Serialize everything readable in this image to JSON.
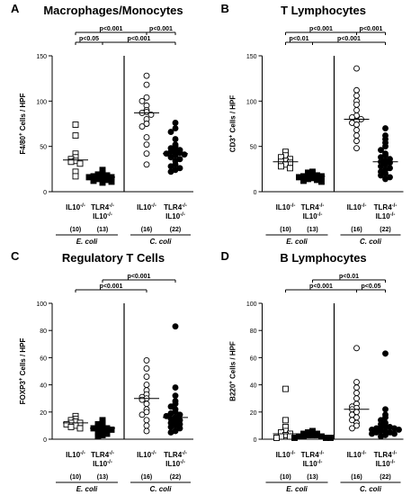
{
  "chart_data": [
    {
      "type": "scatter",
      "panel_letter": "A",
      "title": "Macrophages/Monocytes",
      "ylabel_main": "F4/80",
      "ylabel_sup": "+",
      "ylabel_rest": " Cells / HPF",
      "ylim": [
        0,
        150
      ],
      "yticks": [
        "0",
        "50",
        "100",
        "150"
      ],
      "groups": [
        {
          "label1": "IL10",
          "label1_sup": "-/-",
          "label2": "",
          "label2_sup": "",
          "n": "(10)",
          "marker": "open-square",
          "median": 35,
          "values": [
            74,
            62,
            42,
            38,
            36,
            34,
            33,
            31,
            22,
            17
          ]
        },
        {
          "label1": "TLR4",
          "label1_sup": "-/-",
          "label2": "IL10",
          "label2_sup": "-/-",
          "n": "(13)",
          "marker": "filled-square",
          "median": 16,
          "values": [
            24,
            20,
            19,
            18,
            17,
            16,
            16,
            15,
            14,
            13,
            12,
            11,
            10
          ]
        },
        {
          "label1": "IL10",
          "label1_sup": "-/-",
          "label2": "",
          "label2_sup": "",
          "n": "(16)",
          "marker": "open-circle",
          "median": 87,
          "values": [
            128,
            118,
            104,
            100,
            95,
            90,
            88,
            87,
            85,
            80,
            75,
            72,
            60,
            52,
            42,
            30
          ]
        },
        {
          "label1": "TLR4",
          "label1_sup": "-/-",
          "label2": "IL10",
          "label2_sup": "-/-",
          "n": "(22)",
          "marker": "filled-circle",
          "median": 42,
          "values": [
            76,
            70,
            66,
            58,
            52,
            50,
            48,
            46,
            45,
            44,
            43,
            42,
            41,
            40,
            38,
            36,
            34,
            30,
            28,
            26,
            24,
            22
          ]
        }
      ],
      "brackets": [
        {
          "label": "p<0.05",
          "from": 0,
          "to": 1,
          "level": 0
        },
        {
          "label": "p<0.001",
          "from": 1,
          "to": 3,
          "level": 0
        },
        {
          "label": "p<0.001",
          "from": 0,
          "to": 2,
          "level": 1
        },
        {
          "label": "p<0.001",
          "from": 2,
          "to": 3,
          "level": 1
        }
      ],
      "species": [
        "E. coli",
        "C. coli"
      ]
    },
    {
      "type": "scatter",
      "panel_letter": "B",
      "title": "T Lymphocytes",
      "ylabel_main": "CD3",
      "ylabel_sup": "+",
      "ylabel_rest": " Cells / HPF",
      "ylim": [
        0,
        150
      ],
      "yticks": [
        "0",
        "50",
        "100",
        "150"
      ],
      "groups": [
        {
          "label1": "IL10",
          "label1_sup": "-/-",
          "label2": "",
          "label2_sup": "",
          "n": "(10)",
          "marker": "open-square",
          "median": 33,
          "values": [
            44,
            40,
            38,
            36,
            34,
            33,
            32,
            30,
            28,
            26
          ]
        },
        {
          "label1": "TLR4",
          "label1_sup": "-/-",
          "label2": "IL10",
          "label2_sup": "-/-",
          "n": "(13)",
          "marker": "filled-square",
          "median": 17,
          "values": [
            22,
            21,
            20,
            19,
            18,
            17,
            17,
            16,
            15,
            14,
            13,
            12,
            11
          ]
        },
        {
          "label1": "IL10",
          "label1_sup": "-/-",
          "label2": "",
          "label2_sup": "",
          "n": "(16)",
          "marker": "open-circle",
          "median": 80,
          "values": [
            136,
            112,
            106,
            100,
            96,
            90,
            84,
            82,
            80,
            78,
            76,
            74,
            68,
            62,
            56,
            48
          ]
        },
        {
          "label1": "TLR4",
          "label1_sup": "-/-",
          "label2": "IL10",
          "label2_sup": "-/-",
          "n": "(22)",
          "marker": "filled-circle",
          "median": 33,
          "values": [
            70,
            62,
            58,
            54,
            50,
            46,
            42,
            40,
            38,
            36,
            34,
            33,
            32,
            30,
            28,
            26,
            24,
            22,
            20,
            18,
            16,
            14
          ]
        }
      ],
      "brackets": [
        {
          "label": "p<0.01",
          "from": 0,
          "to": 1,
          "level": 0
        },
        {
          "label": "p<0.001",
          "from": 1,
          "to": 3,
          "level": 0
        },
        {
          "label": "p<0.001",
          "from": 0,
          "to": 2,
          "level": 1
        },
        {
          "label": "p<0.001",
          "from": 2,
          "to": 3,
          "level": 1
        }
      ],
      "species": [
        "E. coli",
        "C. coli"
      ]
    },
    {
      "type": "scatter",
      "panel_letter": "C",
      "title": "Regulatory T Cells",
      "ylabel_main": "FOXP3",
      "ylabel_sup": "+",
      "ylabel_rest": " Cells / HPF",
      "ylim": [
        0,
        100
      ],
      "yticks": [
        "0",
        "20",
        "40",
        "60",
        "80",
        "100"
      ],
      "groups": [
        {
          "label1": "IL10",
          "label1_sup": "-/-",
          "label2": "",
          "label2_sup": "",
          "n": "(10)",
          "marker": "open-square",
          "median": 12,
          "values": [
            17,
            15,
            14,
            13,
            12,
            12,
            11,
            10,
            9,
            8
          ]
        },
        {
          "label1": "TLR4",
          "label1_sup": "-/-",
          "label2": "IL10",
          "label2_sup": "-/-",
          "n": "(13)",
          "marker": "filled-square",
          "median": 8,
          "values": [
            14,
            12,
            11,
            10,
            9,
            8,
            8,
            7,
            6,
            5,
            4,
            3,
            2
          ]
        },
        {
          "label1": "IL10",
          "label1_sup": "-/-",
          "label2": "",
          "label2_sup": "",
          "n": "(16)",
          "marker": "open-circle",
          "median": 30,
          "values": [
            58,
            52,
            46,
            40,
            36,
            33,
            31,
            30,
            29,
            26,
            22,
            20,
            18,
            14,
            10,
            6
          ]
        },
        {
          "label1": "TLR4",
          "label1_sup": "-/-",
          "label2": "IL10",
          "label2_sup": "-/-",
          "n": "(22)",
          "marker": "filled-circle",
          "median": 16,
          "values": [
            83,
            38,
            32,
            28,
            26,
            24,
            22,
            20,
            19,
            18,
            17,
            16,
            15,
            14,
            13,
            12,
            11,
            10,
            9,
            8,
            6,
            5
          ]
        }
      ],
      "brackets": [
        {
          "label": "p<0.001",
          "from": 0,
          "to": 2,
          "level": 0
        },
        {
          "label": "p<0.001",
          "from": 1,
          "to": 3,
          "level": 1
        }
      ],
      "species": [
        "E. coli",
        "C. coli"
      ]
    },
    {
      "type": "scatter",
      "panel_letter": "D",
      "title": "B Lymphocytes",
      "ylabel_main": "B220",
      "ylabel_sup": "+",
      "ylabel_rest": " Cells / HPF",
      "ylim": [
        0,
        100
      ],
      "yticks": [
        "0",
        "20",
        "40",
        "60",
        "80",
        "100"
      ],
      "groups": [
        {
          "label1": "IL10",
          "label1_sup": "-/-",
          "label2": "",
          "label2_sup": "",
          "n": "(10)",
          "marker": "open-square",
          "median": 4,
          "values": [
            37,
            14,
            9,
            6,
            5,
            4,
            3,
            2,
            2,
            1
          ]
        },
        {
          "label1": "TLR4",
          "label1_sup": "-/-",
          "label2": "IL10",
          "label2_sup": "-/-",
          "n": "(13)",
          "marker": "filled-square",
          "median": 3,
          "values": [
            6,
            5,
            4,
            4,
            3,
            3,
            3,
            2,
            2,
            2,
            1,
            1,
            1
          ]
        },
        {
          "label1": "IL10",
          "label1_sup": "-/-",
          "label2": "",
          "label2_sup": "",
          "n": "(16)",
          "marker": "open-circle",
          "median": 22,
          "values": [
            67,
            42,
            38,
            34,
            30,
            26,
            24,
            23,
            22,
            20,
            18,
            16,
            14,
            12,
            10,
            8
          ]
        },
        {
          "label1": "TLR4",
          "label1_sup": "-/-",
          "label2": "IL10",
          "label2_sup": "-/-",
          "n": "(22)",
          "marker": "filled-circle",
          "median": 8,
          "values": [
            63,
            22,
            18,
            16,
            14,
            12,
            11,
            10,
            9,
            9,
            8,
            8,
            7,
            7,
            6,
            6,
            5,
            5,
            4,
            4,
            3,
            2
          ]
        }
      ],
      "brackets": [
        {
          "label": "p<0.001",
          "from": 0,
          "to": 2,
          "level": 0
        },
        {
          "label": "p<0.05",
          "from": 2,
          "to": 3,
          "level": 0
        },
        {
          "label": "p<0.01",
          "from": 1,
          "to": 3,
          "level": 1
        }
      ],
      "species": [
        "E. coli",
        "C. coli"
      ]
    }
  ]
}
